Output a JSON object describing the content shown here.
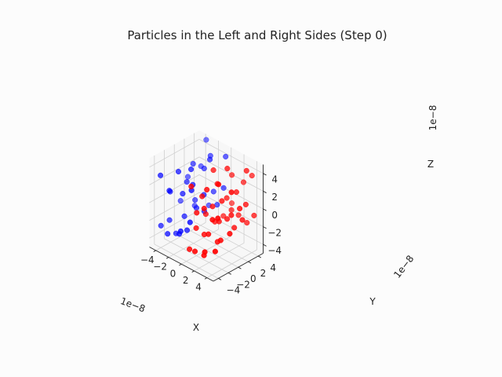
{
  "chart_data": {
    "type": "scatter3d",
    "title": "Particles in the Left and Right Sides (Step 0)",
    "xlabel": "X",
    "ylabel": "Y",
    "zlabel": "Z",
    "x_offset_text": "1e−8",
    "y_offset_text": "1e−8",
    "z_offset_text": "1e−8",
    "xlim": [
      -5,
      5
    ],
    "ylim": [
      -5,
      5
    ],
    "zlim": [
      -5,
      5
    ],
    "x_ticks": [
      -4,
      -2,
      0,
      2,
      4
    ],
    "y_ticks": [
      -4,
      -2,
      0,
      2,
      4
    ],
    "z_ticks": [
      -4,
      -2,
      0,
      2,
      4
    ],
    "x_tick_labels": [
      "−4",
      "−2",
      "0",
      "2",
      "4"
    ],
    "y_tick_labels": [
      "−4",
      "−2",
      "0",
      "2",
      "4"
    ],
    "z_tick_labels": [
      "−4",
      "−2",
      "0",
      "2",
      "4"
    ],
    "grid": true,
    "colors": {
      "left": "#0000ff",
      "right": "#ff0000"
    },
    "series": [
      {
        "side": "left",
        "color": "#0000ff",
        "points": [
          [
            -4.6,
            -3.2,
            -3.0
          ],
          [
            -3.4,
            -3.4,
            -3.4
          ],
          [
            -4.2,
            -2.0,
            -2.6
          ],
          [
            -3.8,
            -1.2,
            -4.2
          ],
          [
            -2.2,
            -2.6,
            -3.2
          ],
          [
            -1.6,
            -1.8,
            -2.8
          ],
          [
            -1.2,
            -3.6,
            -2.2
          ],
          [
            -2.8,
            -0.8,
            -2.0
          ],
          [
            -4.8,
            1.0,
            -1.6
          ],
          [
            -4.0,
            2.8,
            -2.4
          ],
          [
            -3.0,
            1.6,
            -1.0
          ],
          [
            -2.0,
            0.6,
            -1.2
          ],
          [
            -1.4,
            1.4,
            -1.6
          ],
          [
            -0.8,
            3.2,
            -1.2
          ],
          [
            -2.4,
            3.6,
            -2.0
          ],
          [
            -4.4,
            -1.6,
            0.4
          ],
          [
            -3.6,
            -2.8,
            1.2
          ],
          [
            -2.6,
            -1.4,
            0.8
          ],
          [
            -1.8,
            -0.4,
            1.8
          ],
          [
            -0.6,
            -2.2,
            2.2
          ],
          [
            -1.0,
            0.8,
            0.6
          ],
          [
            -3.2,
            0.2,
            1.4
          ],
          [
            -4.6,
            2.2,
            0.8
          ],
          [
            -3.8,
            3.8,
            1.8
          ],
          [
            -2.2,
            2.4,
            2.6
          ],
          [
            -1.2,
            3.0,
            0.2
          ],
          [
            -0.4,
            4.0,
            0.6
          ],
          [
            -4.2,
            -3.8,
            3.0
          ],
          [
            -2.8,
            -2.0,
            3.4
          ],
          [
            -1.6,
            -1.0,
            3.8
          ],
          [
            -3.0,
            1.2,
            3.2
          ],
          [
            -2.0,
            3.4,
            3.8
          ],
          [
            -1.0,
            2.0,
            4.2
          ],
          [
            -0.4,
            4.4,
            4.0
          ],
          [
            -3.6,
            4.6,
            4.6
          ],
          [
            -0.2,
            -3.0,
            -1.0
          ]
        ]
      },
      {
        "side": "right",
        "color": "#ff0000",
        "points": [
          [
            0.8,
            -4.4,
            -3.2
          ],
          [
            1.8,
            -4.6,
            -3.0
          ],
          [
            2.6,
            -3.8,
            -3.4
          ],
          [
            3.2,
            -4.4,
            -2.6
          ],
          [
            4.2,
            -3.6,
            -2.4
          ],
          [
            0.6,
            -2.8,
            -1.4
          ],
          [
            1.4,
            -2.2,
            -2.0
          ],
          [
            2.2,
            -2.4,
            -1.6
          ],
          [
            3.0,
            -1.6,
            -2.4
          ],
          [
            3.8,
            -2.0,
            -1.8
          ],
          [
            4.6,
            -1.2,
            -1.0
          ],
          [
            0.4,
            -0.6,
            -0.6
          ],
          [
            1.2,
            0.2,
            -1.4
          ],
          [
            2.0,
            0.0,
            -1.0
          ],
          [
            2.8,
            0.6,
            -0.6
          ],
          [
            3.6,
            1.0,
            -1.4
          ],
          [
            4.4,
            1.6,
            -0.4
          ],
          [
            0.8,
            2.4,
            -1.6
          ],
          [
            1.6,
            3.0,
            -0.8
          ],
          [
            2.4,
            3.4,
            -1.2
          ],
          [
            3.4,
            3.8,
            -1.8
          ],
          [
            4.2,
            4.2,
            -0.8
          ],
          [
            0.4,
            4.6,
            -1.0
          ],
          [
            1.0,
            -3.2,
            0.6
          ],
          [
            2.0,
            -3.0,
            1.4
          ],
          [
            3.0,
            -2.6,
            0.4
          ],
          [
            4.0,
            -2.8,
            1.0
          ],
          [
            0.6,
            -1.6,
            1.8
          ],
          [
            1.6,
            -0.8,
            0.8
          ],
          [
            2.6,
            -0.2,
            1.6
          ],
          [
            3.6,
            0.4,
            0.2
          ],
          [
            4.6,
            0.8,
            1.2
          ],
          [
            0.8,
            1.2,
            2.4
          ],
          [
            1.8,
            1.8,
            1.0
          ],
          [
            3.0,
            2.2,
            2.0
          ],
          [
            4.0,
            2.8,
            0.8
          ],
          [
            1.2,
            3.6,
            2.8
          ],
          [
            2.4,
            4.4,
            2.2
          ],
          [
            3.4,
            4.8,
            3.2
          ],
          [
            0.6,
            -3.8,
            3.6
          ],
          [
            1.8,
            -2.2,
            3.2
          ],
          [
            3.0,
            -1.4,
            4.0
          ],
          [
            4.4,
            -0.6,
            3.4
          ],
          [
            0.8,
            0.4,
            4.2
          ],
          [
            2.2,
            1.4,
            4.6
          ],
          [
            3.8,
            3.2,
            4.4
          ]
        ]
      }
    ]
  }
}
